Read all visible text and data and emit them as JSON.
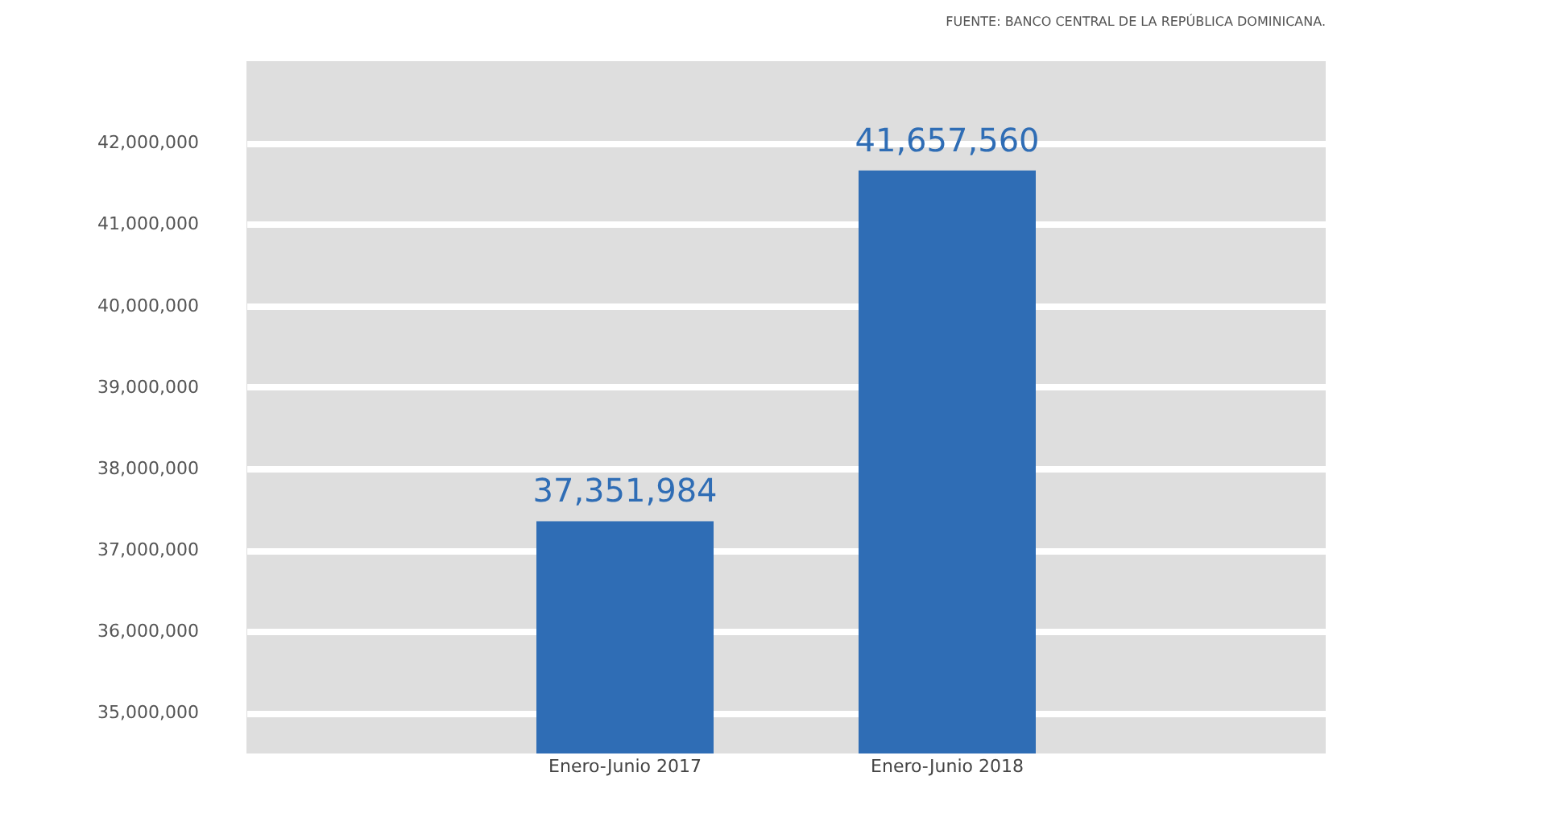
{
  "chart_data": {
    "type": "bar",
    "categories": [
      "Enero-Junio 2017",
      "Enero-Junio 2018"
    ],
    "values": [
      37351984,
      41657560
    ],
    "value_labels": [
      "37,351,984",
      "41,657,560"
    ],
    "color": "#2f6db5",
    "ylim": [
      34500000,
      43000000
    ],
    "yticks": [
      {
        "value": 35000000,
        "label": "35,000,000"
      },
      {
        "value": 36000000,
        "label": "36,000,000"
      },
      {
        "value": 37000000,
        "label": "37,000,000"
      },
      {
        "value": 38000000,
        "label": "38,000,000"
      },
      {
        "value": 39000000,
        "label": "39,000,000"
      },
      {
        "value": 40000000,
        "label": "40,000,000"
      },
      {
        "value": 41000000,
        "label": "41,000,000"
      },
      {
        "value": 42000000,
        "label": "42,000,000"
      }
    ],
    "grid": "y",
    "annotations": [
      "FUENTE: BANCO CENTRAL DE LA REPÚBLICA DOMINICANA."
    ]
  }
}
